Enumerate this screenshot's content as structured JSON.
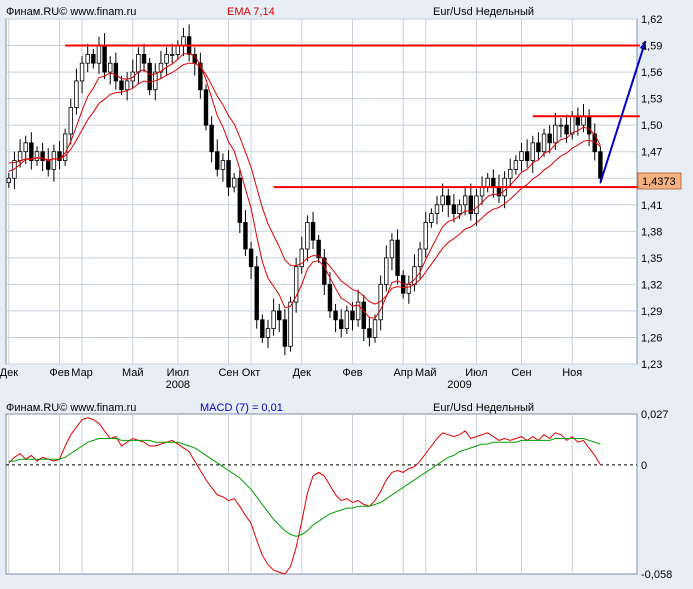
{
  "top_panel": {
    "watermark": "Финам.RU© www.finam.ru",
    "indicator_label": "EMA 7,14",
    "instrument": "Eur/Usd Недельный",
    "price_marker": "1,4373"
  },
  "bottom_panel": {
    "watermark": "Финам.RU© www.finam.ru",
    "indicator_label": "MACD (7) = 0,01",
    "instrument": "Eur/Usd Недельный"
  },
  "colors": {
    "background": "#e8eef5",
    "plot_background": "#ffffff",
    "grid": "#c8d0dc",
    "up_candle": "#ffffff",
    "down_candle": "#000000",
    "ema": "#e00000",
    "macd": "#e00000",
    "signal": "#00a000",
    "levels": "#ff0000",
    "arrow": "#0000cc",
    "marker_bg": "#f4b183"
  },
  "chart_data": [
    {
      "type": "candlestick",
      "title": "Eur/Usd Недельный",
      "ylim": [
        1.23,
        1.62
      ],
      "y_ticks": [
        "1,62",
        "1,59",
        "1,56",
        "1,53",
        "1,50",
        "1,47",
        "1,44",
        "1,41",
        "1,38",
        "1,35",
        "1,32",
        "1,29",
        "1,26",
        "1,23"
      ],
      "x_ticks": [
        {
          "label": "Дек",
          "week": 0
        },
        {
          "label": "Фев",
          "week": 9
        },
        {
          "label": "Мар",
          "week": 13
        },
        {
          "label": "Май",
          "week": 22
        },
        {
          "label": "Июл",
          "week": 30
        },
        {
          "label": "Сен",
          "week": 39
        },
        {
          "label": "Окт",
          "week": 43
        },
        {
          "label": "Дек",
          "week": 52
        },
        {
          "label": "Фев",
          "week": 61
        },
        {
          "label": "Апр",
          "week": 70
        },
        {
          "label": "Май",
          "week": 74
        },
        {
          "label": "Июл",
          "week": 83
        },
        {
          "label": "Сен",
          "week": 91
        },
        {
          "label": "Ноя",
          "week": 100
        }
      ],
      "years": [
        {
          "label": "2008",
          "week": 30
        },
        {
          "label": "2009",
          "week": 80
        }
      ],
      "weekly_close": [
        1.44,
        1.46,
        1.47,
        1.48,
        1.46,
        1.47,
        1.46,
        1.45,
        1.47,
        1.46,
        1.49,
        1.52,
        1.55,
        1.57,
        1.58,
        1.57,
        1.59,
        1.56,
        1.57,
        1.55,
        1.54,
        1.55,
        1.56,
        1.58,
        1.57,
        1.54,
        1.56,
        1.57,
        1.58,
        1.58,
        1.59,
        1.6,
        1.58,
        1.57,
        1.54,
        1.5,
        1.47,
        1.45,
        1.46,
        1.43,
        1.44,
        1.39,
        1.36,
        1.34,
        1.28,
        1.26,
        1.27,
        1.29,
        1.28,
        1.25,
        1.3,
        1.34,
        1.36,
        1.39,
        1.37,
        1.35,
        1.32,
        1.29,
        1.28,
        1.27,
        1.29,
        1.28,
        1.3,
        1.27,
        1.26,
        1.28,
        1.32,
        1.35,
        1.37,
        1.33,
        1.31,
        1.32,
        1.34,
        1.36,
        1.39,
        1.4,
        1.41,
        1.42,
        1.41,
        1.4,
        1.41,
        1.42,
        1.4,
        1.42,
        1.43,
        1.44,
        1.43,
        1.42,
        1.44,
        1.45,
        1.46,
        1.47,
        1.46,
        1.48,
        1.47,
        1.49,
        1.48,
        1.5,
        1.5,
        1.49,
        1.51,
        1.5,
        1.51,
        1.49,
        1.47,
        1.44
      ],
      "ema_fast_start": 1.45,
      "ema_slow_start": 1.46,
      "levels": [
        {
          "value": 1.59,
          "from_week": 10,
          "to_week": 112
        },
        {
          "value": 1.51,
          "from_week": 93,
          "to_week": 112
        },
        {
          "value": 1.43,
          "from_week": 47,
          "to_week": 112
        }
      ],
      "forecast_arrow": {
        "from_week": 105,
        "from_value": 1.435,
        "to_week": 113,
        "to_value": 1.595
      },
      "series": [
        {
          "name": "EMA 7",
          "type": "line"
        },
        {
          "name": "EMA 14",
          "type": "line"
        }
      ]
    },
    {
      "type": "line",
      "title": "MACD (7) = 0,01",
      "ylim": [
        -0.058,
        0.027
      ],
      "y_ticks": [
        "0,027",
        "0",
        "-0,058"
      ],
      "series": [
        {
          "name": "MACD",
          "values": [
            0.001,
            0.004,
            0.006,
            0.003,
            0.005,
            0.002,
            0.004,
            0.003,
            0.002,
            0.003,
            0.01,
            0.016,
            0.02,
            0.024,
            0.025,
            0.024,
            0.022,
            0.018,
            0.014,
            0.015,
            0.01,
            0.012,
            0.014,
            0.013,
            0.012,
            0.01,
            0.01,
            0.011,
            0.012,
            0.013,
            0.011,
            0.009,
            0.007,
            0.002,
            -0.003,
            -0.008,
            -0.012,
            -0.016,
            -0.017,
            -0.019,
            -0.018,
            -0.022,
            -0.027,
            -0.031,
            -0.04,
            -0.048,
            -0.053,
            -0.056,
            -0.057,
            -0.058,
            -0.054,
            -0.044,
            -0.03,
            -0.015,
            -0.006,
            -0.004,
            -0.006,
            -0.011,
            -0.016,
            -0.019,
            -0.018,
            -0.02,
            -0.019,
            -0.021,
            -0.022,
            -0.019,
            -0.014,
            -0.008,
            -0.004,
            -0.003,
            -0.004,
            -0.002,
            -0.001,
            0.002,
            0.006,
            0.01,
            0.014,
            0.017,
            0.016,
            0.015,
            0.016,
            0.018,
            0.014,
            0.015,
            0.016,
            0.017,
            0.015,
            0.013,
            0.014,
            0.013,
            0.014,
            0.015,
            0.013,
            0.015,
            0.013,
            0.016,
            0.014,
            0.017,
            0.016,
            0.013,
            0.015,
            0.012,
            0.013,
            0.009,
            0.005,
            0.0
          ]
        },
        {
          "name": "Signal",
          "values": [
            0.002,
            0.002,
            0.003,
            0.003,
            0.003,
            0.003,
            0.003,
            0.003,
            0.003,
            0.003,
            0.004,
            0.006,
            0.008,
            0.01,
            0.012,
            0.013,
            0.014,
            0.014,
            0.014,
            0.014,
            0.013,
            0.013,
            0.013,
            0.013,
            0.013,
            0.013,
            0.012,
            0.012,
            0.012,
            0.012,
            0.012,
            0.011,
            0.01,
            0.009,
            0.007,
            0.005,
            0.003,
            0.001,
            -0.001,
            -0.003,
            -0.005,
            -0.007,
            -0.01,
            -0.013,
            -0.017,
            -0.021,
            -0.025,
            -0.029,
            -0.032,
            -0.035,
            -0.037,
            -0.038,
            -0.037,
            -0.035,
            -0.032,
            -0.03,
            -0.028,
            -0.026,
            -0.025,
            -0.024,
            -0.023,
            -0.023,
            -0.022,
            -0.022,
            -0.022,
            -0.021,
            -0.02,
            -0.018,
            -0.016,
            -0.014,
            -0.012,
            -0.01,
            -0.008,
            -0.006,
            -0.004,
            -0.002,
            0.0,
            0.002,
            0.004,
            0.005,
            0.007,
            0.008,
            0.009,
            0.01,
            0.011,
            0.011,
            0.012,
            0.012,
            0.012,
            0.012,
            0.012,
            0.013,
            0.013,
            0.013,
            0.013,
            0.013,
            0.013,
            0.014,
            0.014,
            0.014,
            0.014,
            0.014,
            0.014,
            0.013,
            0.012,
            0.011
          ]
        }
      ]
    }
  ]
}
